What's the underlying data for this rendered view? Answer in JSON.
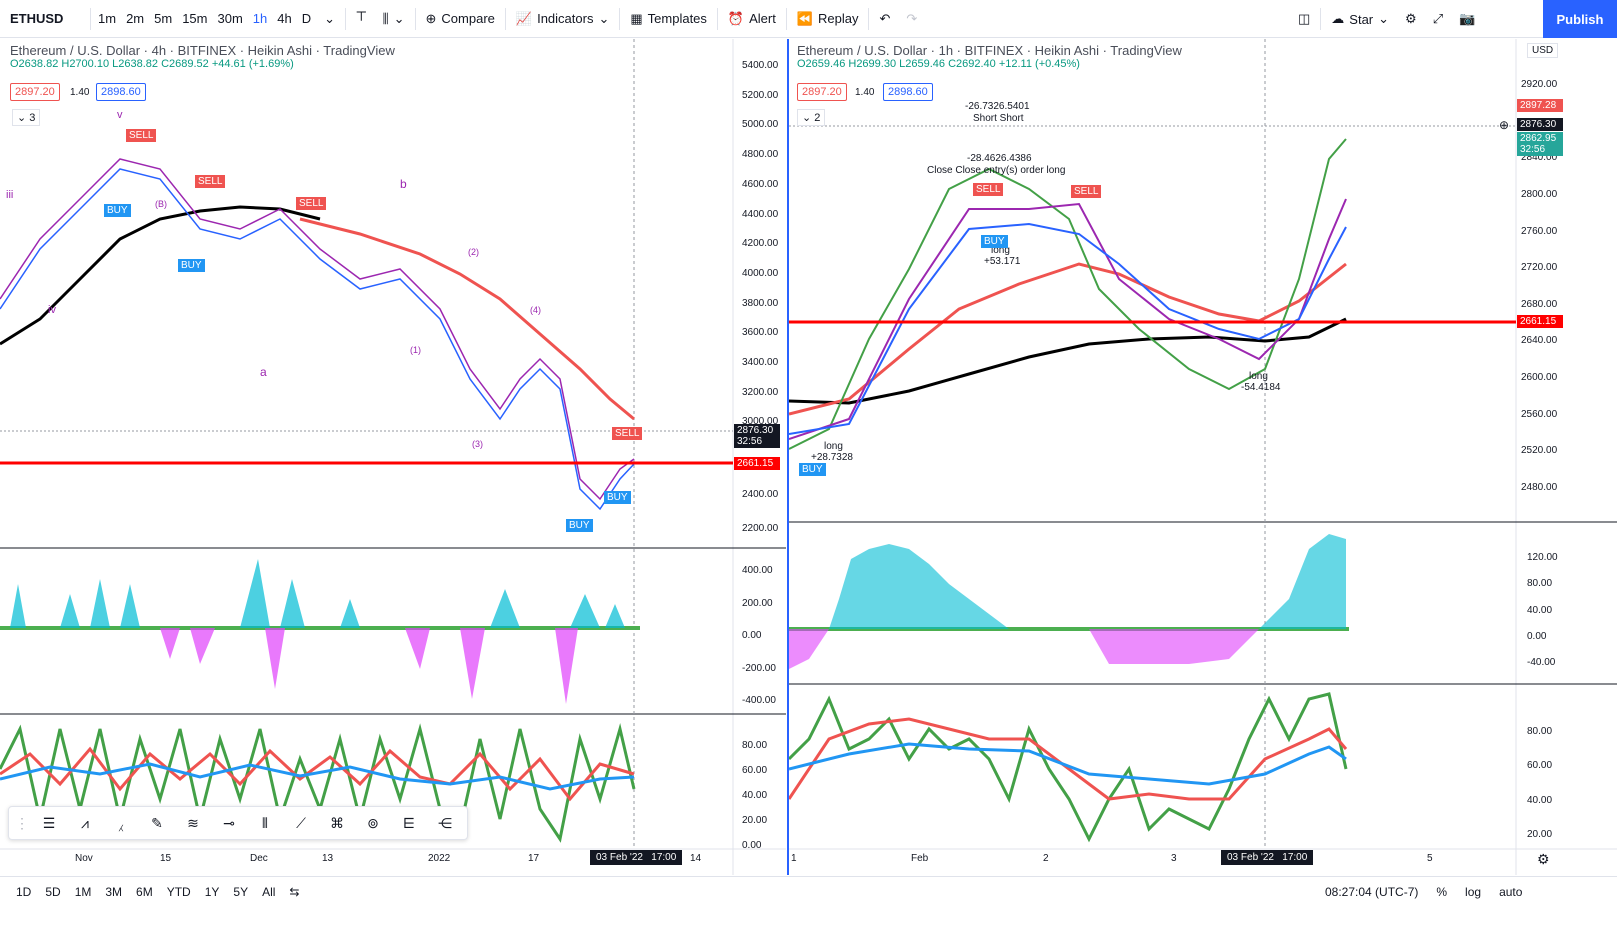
{
  "toolbar": {
    "symbol": "ETHUSD",
    "intervals": [
      "1m",
      "2m",
      "5m",
      "15m",
      "30m",
      "1h",
      "4h",
      "D"
    ],
    "compare": "Compare",
    "indicators": "Indicators",
    "templates": "Templates",
    "alert": "Alert",
    "replay": "Replay",
    "star": "Star",
    "publish": "Publish"
  },
  "left_chart": {
    "title": "Ethereum / U.S. Dollar · 4h · BITFINEX · Heikin Ashi · TradingView",
    "ohlc": "O2638.82  H2700.10  L2638.82  C2689.52  +44.61 (+1.69%)",
    "bid": "2897.20",
    "spread": "1.40",
    "ask": "2898.60",
    "count": "3",
    "price_axis": [
      "5400.00",
      "5200.00",
      "5000.00",
      "4800.00",
      "4600.00",
      "4400.00",
      "4200.00",
      "4000.00",
      "3800.00",
      "3600.00",
      "3400.00",
      "3200.00",
      "3000.00",
      "2600.00",
      "2400.00",
      "2200.00"
    ],
    "price_current": "2876.30",
    "timer": "32:56",
    "red_line": "2661.15",
    "osc_axis": [
      "400.00",
      "200.00",
      "0.00",
      "-200.00",
      "-400.00"
    ],
    "rsi_axis": [
      "80.00",
      "60.00",
      "40.00",
      "20.00",
      "0.00"
    ],
    "time_axis": [
      "Nov",
      "15",
      "Dec",
      "13",
      "2022",
      "17",
      "14"
    ],
    "cursor_time": "03 Feb '22   17:00",
    "waves": [
      "iii",
      "iv",
      "v",
      "b",
      "a",
      "(1)",
      "(2)",
      "(3)",
      "(4)",
      "(B)"
    ]
  },
  "right_chart": {
    "title": "Ethereum / U.S. Dollar · 1h · BITFINEX · Heikin Ashi · TradingView",
    "ohlc": "O2659.46  H2699.30  L2659.46  C2692.40  +12.11 (+0.45%)",
    "bid": "2897.20",
    "spread": "1.40",
    "ask": "2898.60",
    "count": "2",
    "currency": "USD",
    "price_axis": [
      "2920.00",
      "2840.00",
      "2800.00",
      "2760.00",
      "2720.00",
      "2680.00",
      "2640.00",
      "2600.00",
      "2560.00",
      "2520.00",
      "2480.00"
    ],
    "price_top": "2897.28",
    "price_current": "2876.30",
    "price_ema": "2862.95",
    "timer": "32:56",
    "red_line": "2661.15",
    "osc_axis": [
      "120.00",
      "80.00",
      "40.00",
      "0.00",
      "-40.00"
    ],
    "rsi_axis": [
      "80.00",
      "60.00",
      "40.00",
      "20.00"
    ],
    "time_axis": [
      "1",
      "Feb",
      "2",
      "3",
      "5"
    ],
    "cursor_time": "03 Feb '22   17:00",
    "annotations": [
      "-26.7326.5401",
      "Short Short",
      "-28.4626.4386",
      "Close Close entry(s) order long",
      "long",
      "+53.171",
      "long",
      "+28.7328",
      "long",
      "-54.4184"
    ]
  },
  "bottom": {
    "ranges": [
      "1D",
      "5D",
      "1M",
      "3M",
      "6M",
      "YTD",
      "1Y",
      "5Y",
      "All"
    ],
    "clock": "08:27:04 (UTC-7)",
    "percent": "%",
    "log": "log",
    "auto": "auto"
  },
  "colors": {
    "accent": "#2962ff",
    "up": "#26a69a",
    "down": "#ef5350",
    "red_line": "#ff0000"
  }
}
